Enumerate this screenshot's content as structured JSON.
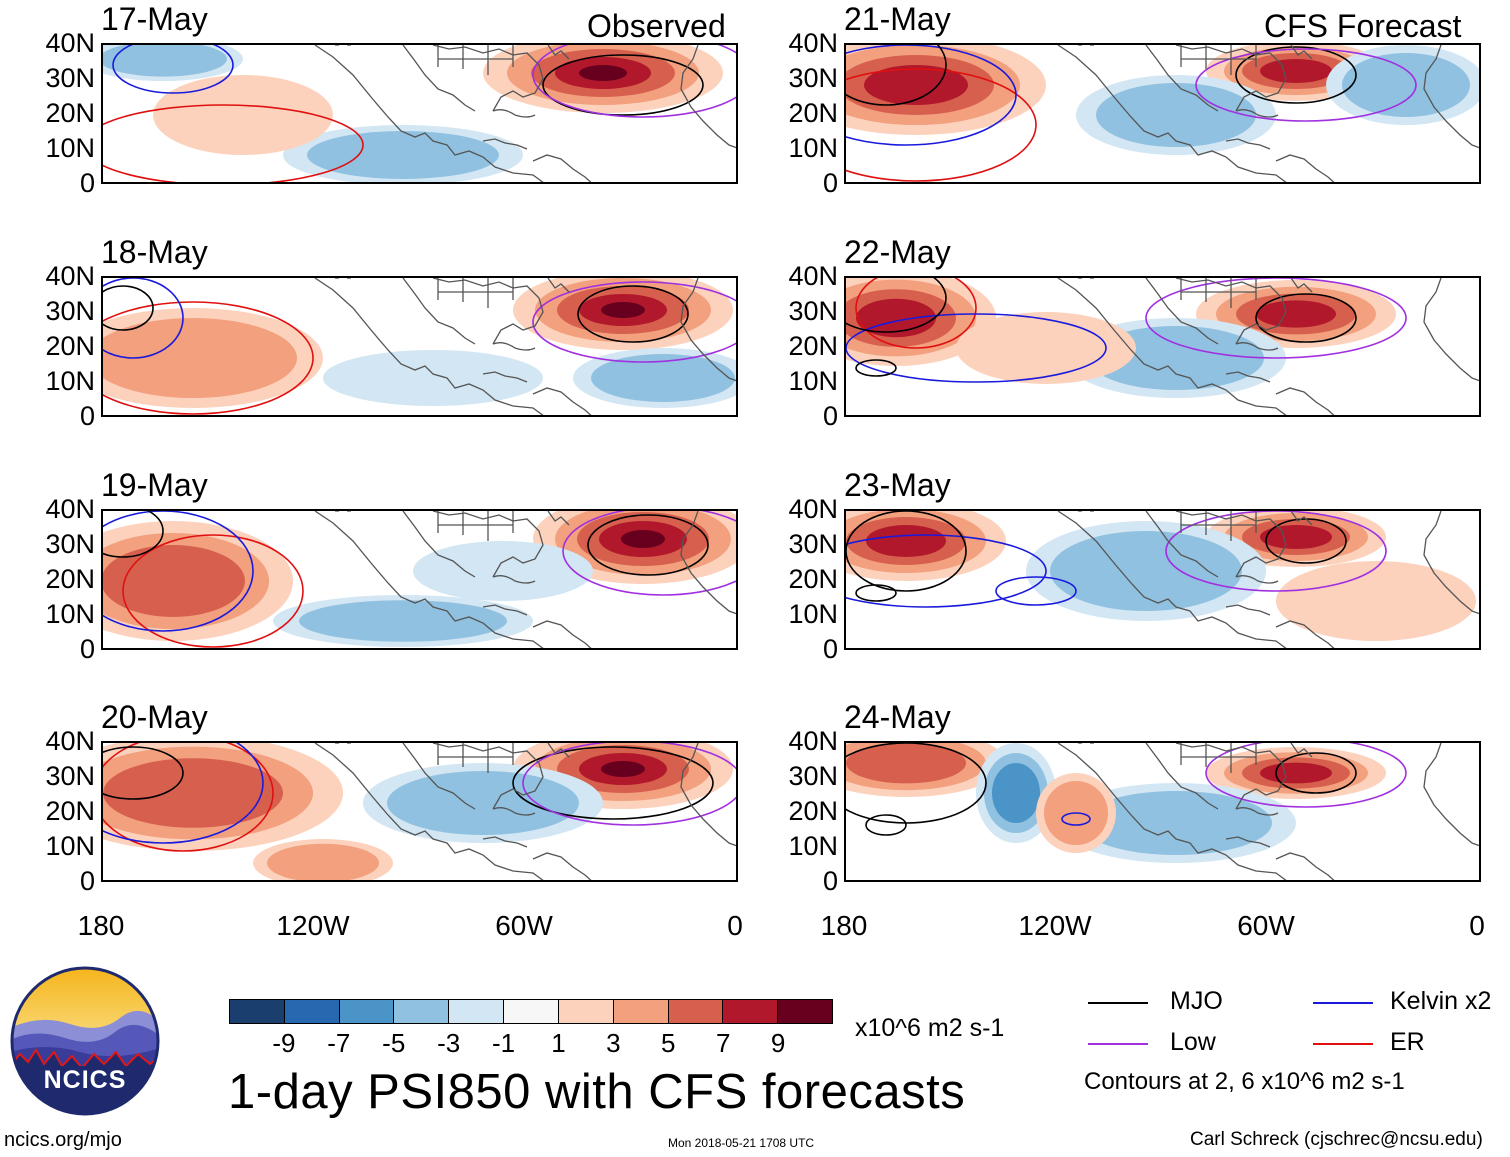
{
  "sections": {
    "observed_label": "Observed",
    "forecast_label": "CFS Forecast"
  },
  "panels": {
    "observed": [
      {
        "date": "17-May"
      },
      {
        "date": "18-May"
      },
      {
        "date": "19-May"
      },
      {
        "date": "20-May"
      }
    ],
    "forecast": [
      {
        "date": "21-May"
      },
      {
        "date": "22-May"
      },
      {
        "date": "23-May"
      },
      {
        "date": "24-May"
      }
    ]
  },
  "axes": {
    "y_ticks": [
      "40N",
      "30N",
      "20N",
      "10N",
      "0"
    ],
    "x_ticks": [
      "180",
      "120W",
      "60W",
      "0"
    ]
  },
  "colorbar": {
    "colors": [
      "#1a3f6e",
      "#2868b0",
      "#4a94c8",
      "#90c1e0",
      "#d2e6f3",
      "#f7f7f7",
      "#fcd2bd",
      "#f2a07e",
      "#d6604d",
      "#b2182b",
      "#67001f"
    ],
    "labels": [
      "-9",
      "-7",
      "-5",
      "-3",
      "-1",
      "1",
      "3",
      "5",
      "7",
      "9"
    ],
    "units": "x10^6 m2 s-1"
  },
  "title": "1-day PSI850 with CFS forecasts",
  "legend": {
    "items": [
      {
        "label": "MJO",
        "color": "#000000"
      },
      {
        "label": "Kelvin x2",
        "color": "#1a1adc"
      },
      {
        "label": "Low",
        "color": "#a030e0"
      },
      {
        "label": "ER",
        "color": "#e01010"
      }
    ],
    "note": "Contours at 2, 6 x10^6 m2 s-1"
  },
  "logo": {
    "text": "NCICS"
  },
  "footer": {
    "left": "ncics.org/mjo",
    "center": "Mon 2018-05-21 1708 UTC",
    "right": "Carl Schreck (cjschrec@ncsu.edu)"
  }
}
